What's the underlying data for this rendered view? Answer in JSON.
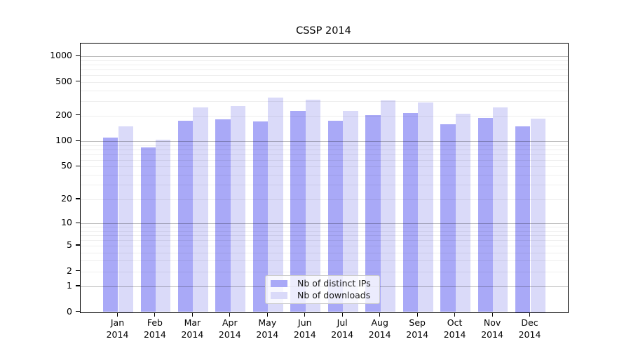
{
  "title": "CSSP 2014",
  "legend": {
    "items": [
      {
        "label": "Nb of distinct IPs",
        "color": "#a9a9f7"
      },
      {
        "label": "Nb of downloads",
        "color": "#dadaf9"
      }
    ]
  },
  "chart_data": {
    "type": "bar",
    "title": "CSSP 2014",
    "categories": [
      "Jan 2014",
      "Feb 2014",
      "Mar 2014",
      "Apr 2014",
      "May 2014",
      "Jun 2014",
      "Jul 2014",
      "Aug 2014",
      "Sep 2014",
      "Oct 2014",
      "Nov 2014",
      "Dec 2014"
    ],
    "series": [
      {
        "name": "Nb of distinct IPs",
        "color": "#a9a9f7",
        "values": [
          110,
          85,
          175,
          180,
          170,
          230,
          175,
          205,
          215,
          160,
          190,
          150
        ]
      },
      {
        "name": "Nb of downloads",
        "color": "#dadaf9",
        "values": [
          150,
          105,
          250,
          260,
          325,
          310,
          230,
          305,
          285,
          210,
          250,
          185
        ]
      }
    ],
    "xlabel": "",
    "ylabel": "",
    "yscale": "log1p",
    "ylim": [
      0,
      1414
    ],
    "yticks": [
      1000,
      500,
      200,
      100,
      50,
      20,
      10,
      5,
      2,
      1,
      0
    ],
    "ytick_labels": [
      "1000",
      "500",
      "200",
      "100",
      "50",
      "20",
      "10",
      "5",
      "2",
      "1",
      "0"
    ],
    "minor_gridlines": [
      2,
      3,
      4,
      5,
      6,
      7,
      8,
      9,
      20,
      30,
      40,
      50,
      60,
      70,
      80,
      90,
      200,
      300,
      400,
      500,
      600,
      700,
      800,
      900
    ],
    "major_gridlines": [
      1,
      10,
      100,
      1000
    ],
    "grid": true,
    "legend_position": "lower center"
  },
  "colors": {
    "major_grid": "rgba(0,0,0,0.26)",
    "minor_grid": "rgba(0,0,0,0.065)",
    "spine": "#000000",
    "text": "#1a1a1a"
  }
}
